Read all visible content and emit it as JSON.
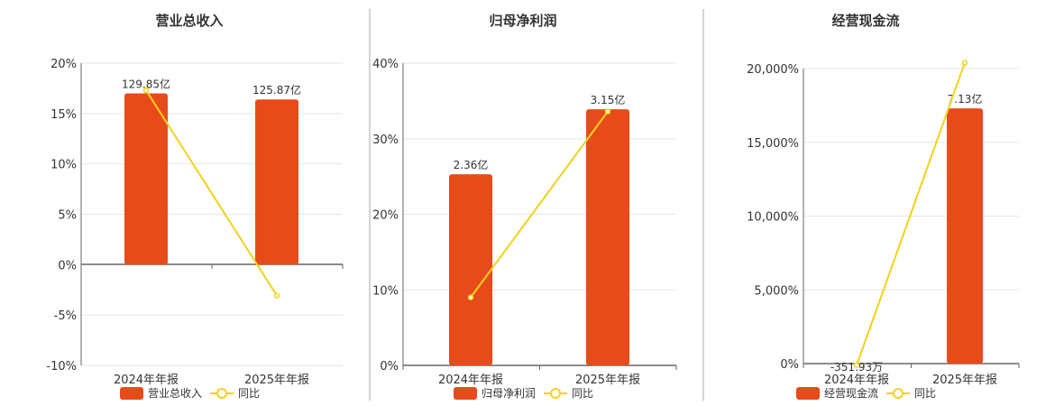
{
  "colors": {
    "bar": "#E84B1A",
    "line": "#F2D21B",
    "grid": "#E6E6E6",
    "axis": "#666666",
    "divider": "#AAAAAA"
  },
  "legend": {
    "yoy_label": "同比"
  },
  "chart_data": [
    {
      "type": "bar",
      "title": "营业总收入",
      "categories": [
        "2024年年报",
        "2025年年报"
      ],
      "series": [
        {
          "name": "营业总收入",
          "type": "bar",
          "labels": [
            "129.85亿",
            "125.87亿"
          ]
        },
        {
          "name": "同比",
          "type": "line",
          "values": [
            17.3,
            -3.06
          ]
        }
      ],
      "ylim": [
        -10,
        20
      ],
      "yticks": [
        "20%",
        "15%",
        "10%",
        "5%",
        "0%",
        "-5%",
        "-10%"
      ],
      "bar_heights_pct": [
        17.0,
        16.4
      ],
      "grid": true,
      "legend_position": "bottom"
    },
    {
      "type": "bar",
      "title": "归母净利润",
      "categories": [
        "2024年年报",
        "2025年年报"
      ],
      "series": [
        {
          "name": "归母净利润",
          "type": "bar",
          "labels": [
            "2.36亿",
            "3.15亿"
          ]
        },
        {
          "name": "同比",
          "type": "line",
          "values": [
            9.0,
            33.6
          ]
        }
      ],
      "ylim": [
        0,
        40
      ],
      "yticks": [
        "40%",
        "30%",
        "20%",
        "10%",
        "0%"
      ],
      "bar_heights_pct": [
        25.3,
        33.9
      ],
      "grid": true,
      "legend_position": "bottom"
    },
    {
      "type": "bar",
      "title": "经营现金流",
      "categories": [
        "2024年年报",
        "2025年年报"
      ],
      "series": [
        {
          "name": "经营现金流",
          "type": "bar",
          "labels": [
            "-351.93万",
            "7.13亿"
          ]
        },
        {
          "name": "同比",
          "type": "line",
          "values": [
            -100,
            20400
          ]
        }
      ],
      "ylim": [
        0,
        20000
      ],
      "yticks": [
        "20,000%",
        "15,000%",
        "10,000%",
        "5,000%",
        "0%"
      ],
      "bar_heights_pct": [
        0,
        17300
      ],
      "grid": true,
      "legend_position": "bottom"
    }
  ]
}
